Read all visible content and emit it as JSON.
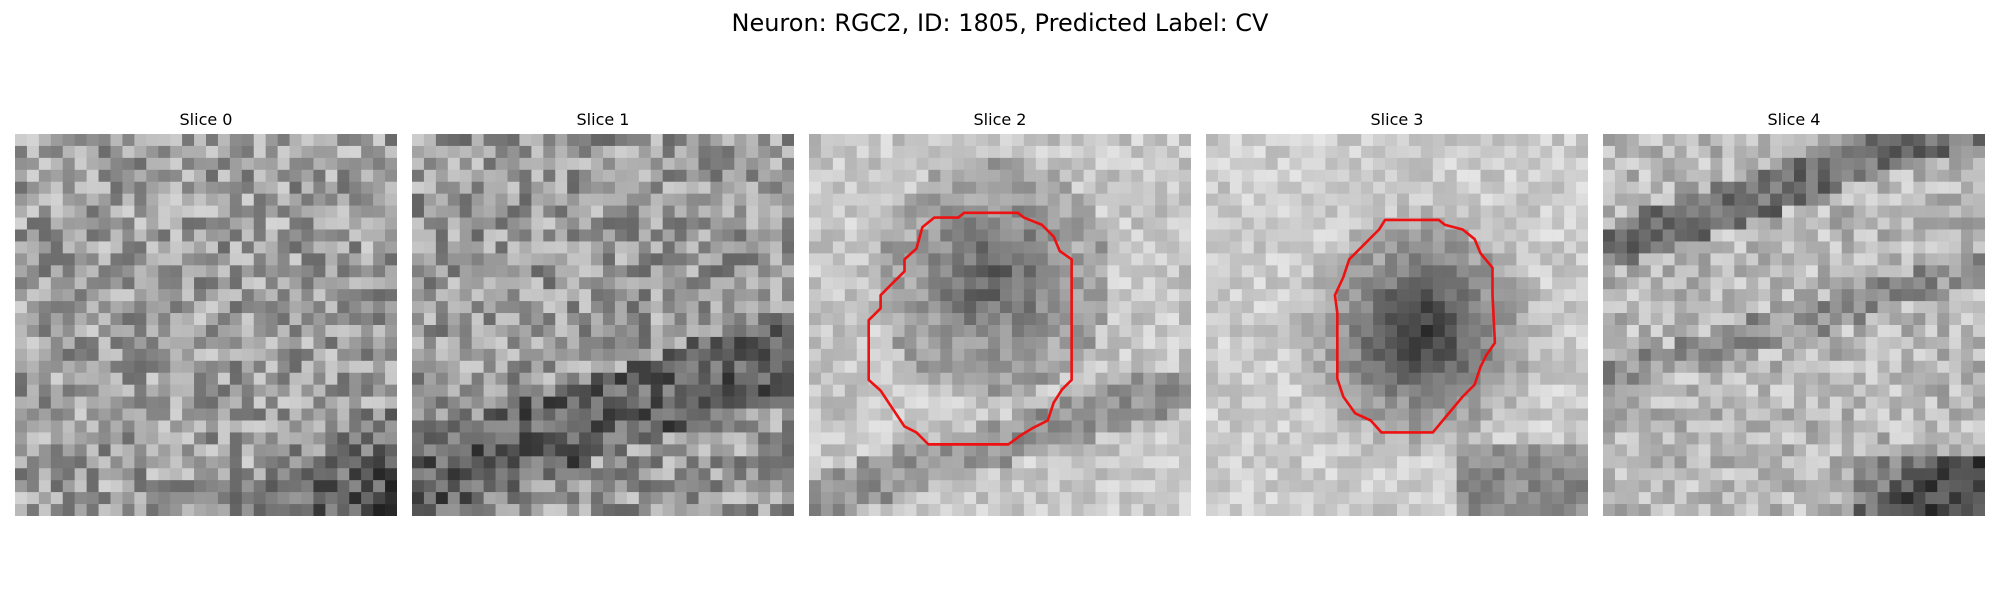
{
  "figure": {
    "title": "Neuron: RGC2, ID: 1805, Predicted Label: CV"
  },
  "panels": [
    {
      "title": "Slice 0",
      "contour": false
    },
    {
      "title": "Slice 1",
      "contour": false
    },
    {
      "title": "Slice 2",
      "contour": true
    },
    {
      "title": "Slice 3",
      "contour": true
    },
    {
      "title": "Slice 4",
      "contour": false
    }
  ],
  "colors": {
    "contour": "#ee1111",
    "colormap": "grayscale"
  }
}
